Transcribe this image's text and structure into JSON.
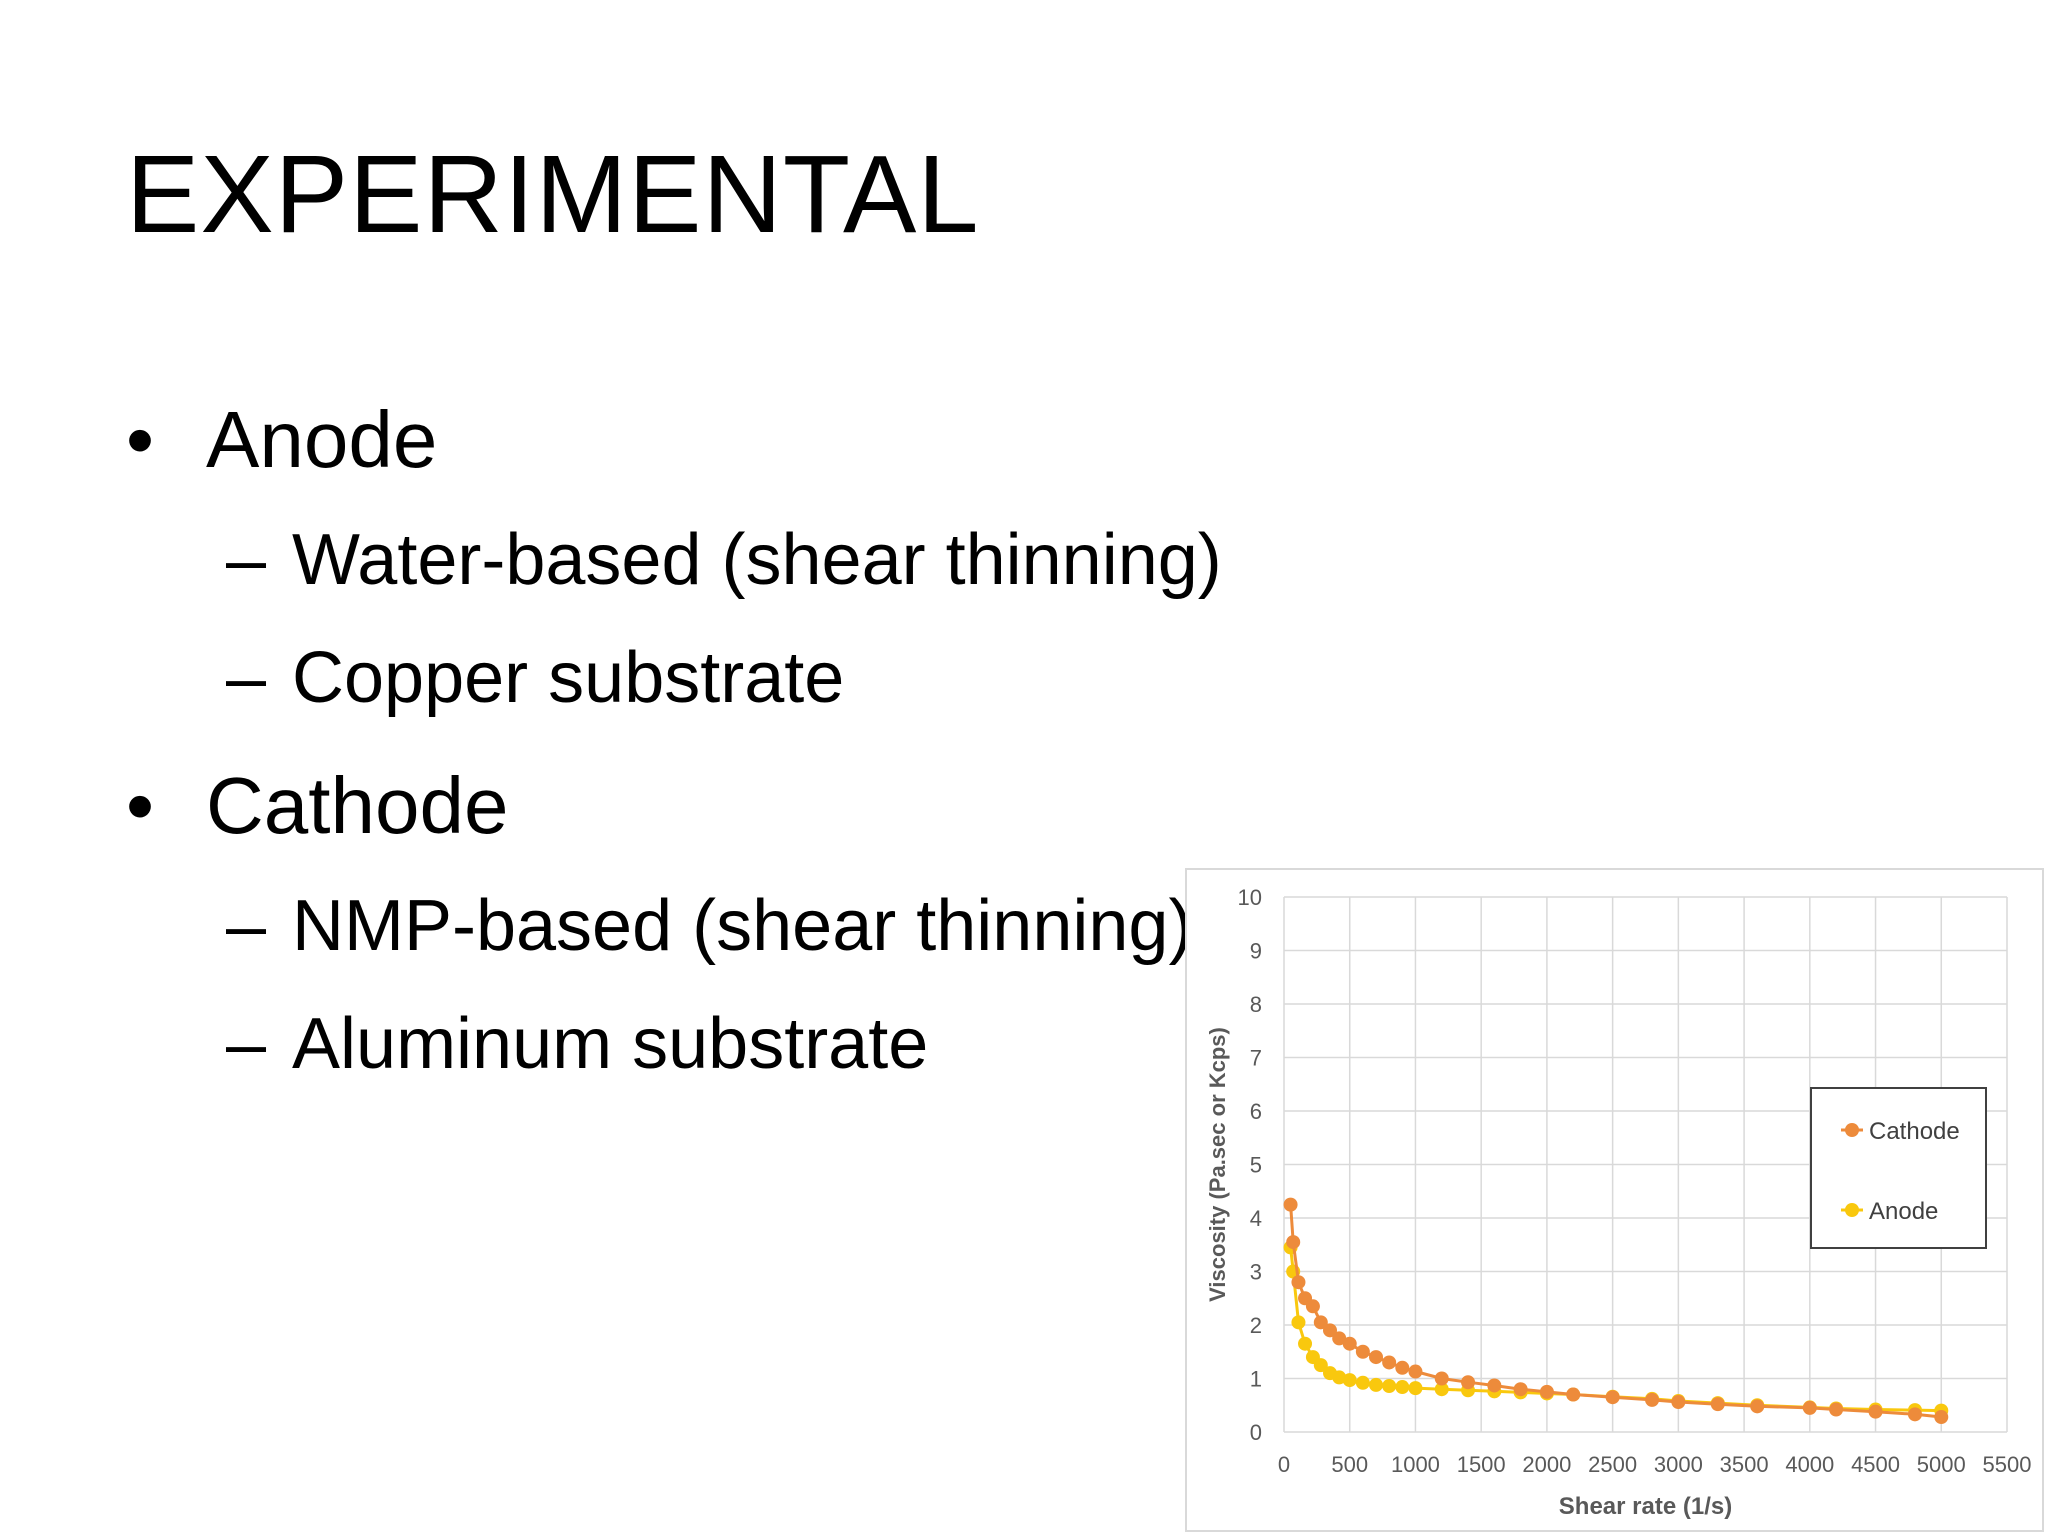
{
  "slide": {
    "title": "EXPERIMENTAL",
    "bullets": [
      {
        "label": "Anode",
        "subitems": [
          "Water-based (shear thinning)",
          "Copper substrate"
        ]
      },
      {
        "label": "Cathode",
        "subitems": [
          "NMP-based (shear thinning)",
          "Aluminum substrate"
        ]
      }
    ],
    "bullet_glyph": "•",
    "sub_glyph": "–"
  },
  "chart_data": {
    "type": "scatter",
    "xlabel": "Shear rate (1/s)",
    "ylabel": "Viscosity (Pa.sec or Kcps)",
    "xlim": [
      0,
      5500
    ],
    "ylim": [
      0,
      10
    ],
    "xticks": [
      0,
      500,
      1000,
      1500,
      2000,
      2500,
      3000,
      3500,
      4000,
      4500,
      5000,
      5500
    ],
    "yticks": [
      0,
      1,
      2,
      3,
      4,
      5,
      6,
      7,
      8,
      9,
      10
    ],
    "grid": true,
    "legend_position": "right",
    "series": [
      {
        "name": "Cathode",
        "color": "#ed8b3b",
        "x": [
          50,
          70,
          110,
          160,
          220,
          280,
          350,
          420,
          500,
          600,
          700,
          800,
          900,
          1000,
          1200,
          1400,
          1600,
          1800,
          2000,
          2200,
          2500,
          2800,
          3000,
          3300,
          3600,
          4000,
          4200,
          4500,
          4800,
          5000
        ],
        "y": [
          4.25,
          3.55,
          2.8,
          2.5,
          2.35,
          2.05,
          1.9,
          1.75,
          1.65,
          1.5,
          1.4,
          1.3,
          1.2,
          1.13,
          1.0,
          0.93,
          0.87,
          0.8,
          0.75,
          0.7,
          0.65,
          0.6,
          0.56,
          0.52,
          0.48,
          0.45,
          0.42,
          0.38,
          0.33,
          0.28
        ]
      },
      {
        "name": "Anode",
        "color": "#f9c80e",
        "x": [
          50,
          70,
          110,
          160,
          220,
          280,
          350,
          420,
          500,
          600,
          700,
          800,
          900,
          1000,
          1200,
          1400,
          1600,
          1800,
          2000,
          2200,
          2500,
          2800,
          3000,
          3300,
          3600,
          4000,
          4200,
          4500,
          4800,
          5000
        ],
        "y": [
          3.45,
          3.0,
          2.05,
          1.65,
          1.4,
          1.25,
          1.1,
          1.02,
          0.97,
          0.92,
          0.88,
          0.86,
          0.84,
          0.82,
          0.8,
          0.78,
          0.76,
          0.74,
          0.72,
          0.7,
          0.66,
          0.62,
          0.58,
          0.54,
          0.5,
          0.46,
          0.44,
          0.42,
          0.41,
          0.4
        ]
      }
    ]
  }
}
